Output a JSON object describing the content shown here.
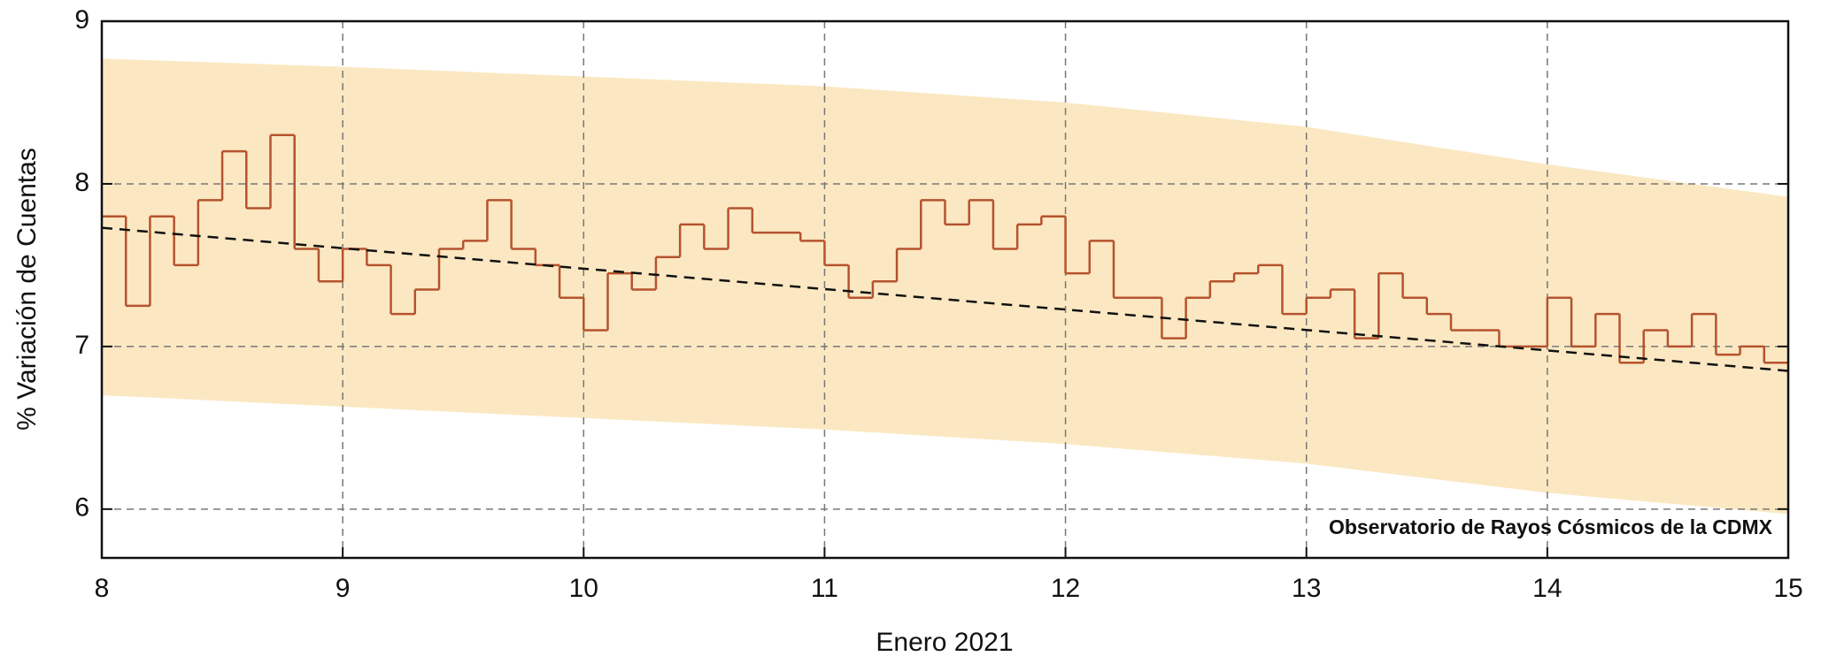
{
  "chart_data": {
    "type": "step",
    "xlabel": "Enero 2021",
    "ylabel": "% Variación de Cuentas",
    "annotation": "Observatorio de Rayos Cósmicos de la CDMX",
    "xlim": [
      8,
      15
    ],
    "xticks": [
      8,
      9,
      10,
      11,
      12,
      13,
      14,
      15
    ],
    "ylim": [
      5.7,
      9
    ],
    "yticks": [
      6,
      7,
      8,
      9
    ],
    "grid": true,
    "color": "#b5532e",
    "x": [
      8.0,
      8.1,
      8.2,
      8.3,
      8.4,
      8.5,
      8.6,
      8.7,
      8.8,
      8.9,
      9.0,
      9.1,
      9.2,
      9.3,
      9.4,
      9.5,
      9.6,
      9.7,
      9.8,
      9.9,
      10.0,
      10.1,
      10.2,
      10.3,
      10.4,
      10.5,
      10.6,
      10.7,
      10.8,
      10.9,
      11.0,
      11.1,
      11.2,
      11.3,
      11.4,
      11.5,
      11.6,
      11.7,
      11.8,
      11.9,
      12.0,
      12.1,
      12.2,
      12.3,
      12.4,
      12.5,
      12.6,
      12.7,
      12.8,
      12.9,
      13.0,
      13.1,
      13.2,
      13.3,
      13.4,
      13.5,
      13.6,
      13.7,
      13.8,
      13.9,
      14.0,
      14.1,
      14.2,
      14.3,
      14.4,
      14.5,
      14.6,
      14.7,
      14.8,
      14.9
    ],
    "values": [
      7.8,
      7.25,
      7.8,
      7.5,
      7.9,
      8.2,
      7.85,
      8.3,
      7.6,
      7.4,
      7.6,
      7.5,
      7.2,
      7.35,
      7.6,
      7.65,
      7.9,
      7.6,
      7.5,
      7.3,
      7.1,
      7.45,
      7.35,
      7.55,
      7.75,
      7.6,
      7.85,
      7.7,
      7.7,
      7.65,
      7.5,
      7.3,
      7.4,
      7.6,
      7.9,
      7.75,
      7.9,
      7.6,
      7.75,
      7.8,
      7.45,
      7.65,
      7.3,
      7.3,
      7.05,
      7.3,
      7.4,
      7.45,
      7.5,
      7.2,
      7.3,
      7.35,
      7.05,
      7.45,
      7.3,
      7.2,
      7.1,
      7.1,
      7.0,
      7.0,
      7.3,
      7.0,
      7.2,
      6.9,
      7.1,
      7.0,
      7.2,
      6.95,
      7.0,
      6.9
    ],
    "band": {
      "color": "#fbe8c2",
      "x": [
        8,
        9,
        10,
        11,
        12,
        13,
        14,
        15
      ],
      "upper": [
        8.77,
        8.72,
        8.66,
        8.6,
        8.5,
        8.35,
        8.12,
        7.92
      ],
      "lower": [
        6.7,
        6.63,
        6.56,
        6.49,
        6.4,
        6.28,
        6.1,
        5.97
      ]
    },
    "trend": {
      "color": "#111111",
      "x": [
        8,
        15
      ],
      "values": [
        7.73,
        6.85
      ]
    }
  }
}
